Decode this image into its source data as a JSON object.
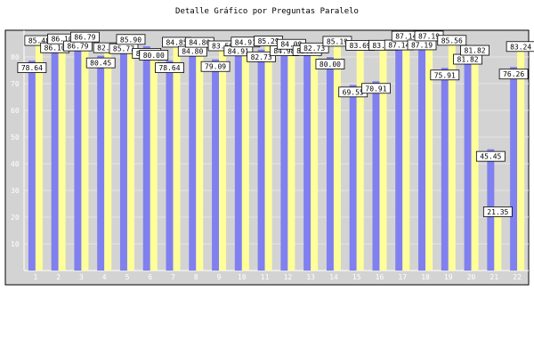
{
  "chart_data": {
    "type": "bar",
    "title": "Detalle Gráfico por Preguntas Paralelo",
    "categories": [
      "1",
      "2",
      "3",
      "4",
      "5",
      "6",
      "7",
      "8",
      "9",
      "10",
      "11",
      "12",
      "13",
      "14",
      "15",
      "16",
      "17",
      "18",
      "19",
      "20",
      "21",
      "22"
    ],
    "y_ticks": [
      10,
      20,
      30,
      40,
      50,
      60,
      70,
      80
    ],
    "ylim": [
      0,
      90
    ],
    "grid": true,
    "series": [
      {
        "color": "#8080f0",
        "values": [
          78.64,
          86.1,
          86.79,
          80.45,
          85.77,
          84.02,
          78.64,
          84.8,
          79.09,
          84.91,
          82.73,
          84.98,
          85.07,
          80.0,
          69.55,
          70.91,
          87.14,
          87.19,
          75.91,
          81.82,
          45.45,
          76.26
        ],
        "labels": [
          "78.64",
          "86.10",
          "86.79",
          "80.45",
          "85.77",
          "84.02",
          "78.64",
          "84.80",
          "79.09",
          "84.91",
          "82.73",
          "84.98",
          "85.07",
          "80.00",
          "69.55",
          "70.91",
          "87.14",
          "87.19",
          "75.91",
          "81.82",
          "45.45",
          "76.26"
        ]
      },
      {
        "color": "#ffff99",
        "values": [
          85.48,
          86.1,
          86.79,
          82.79,
          85.9,
          80.0,
          84.85,
          84.8,
          83.5,
          84.91,
          85.29,
          84.09,
          82.73,
          85.19,
          83.69,
          83.73,
          87.14,
          87.19,
          85.56,
          81.82,
          21.35,
          83.24
        ],
        "labels": [
          "85.48",
          "86.10",
          "86.79",
          "82.79",
          "85.90",
          "80.00",
          "84.85",
          "84.80",
          "83.50",
          "84.91",
          "85.29",
          "84.09",
          "82.73",
          "85.19",
          "83.69",
          "83.73",
          "87.14",
          "87.19",
          "85.56",
          "81.82",
          "21.35",
          "83.24"
        ]
      }
    ]
  }
}
